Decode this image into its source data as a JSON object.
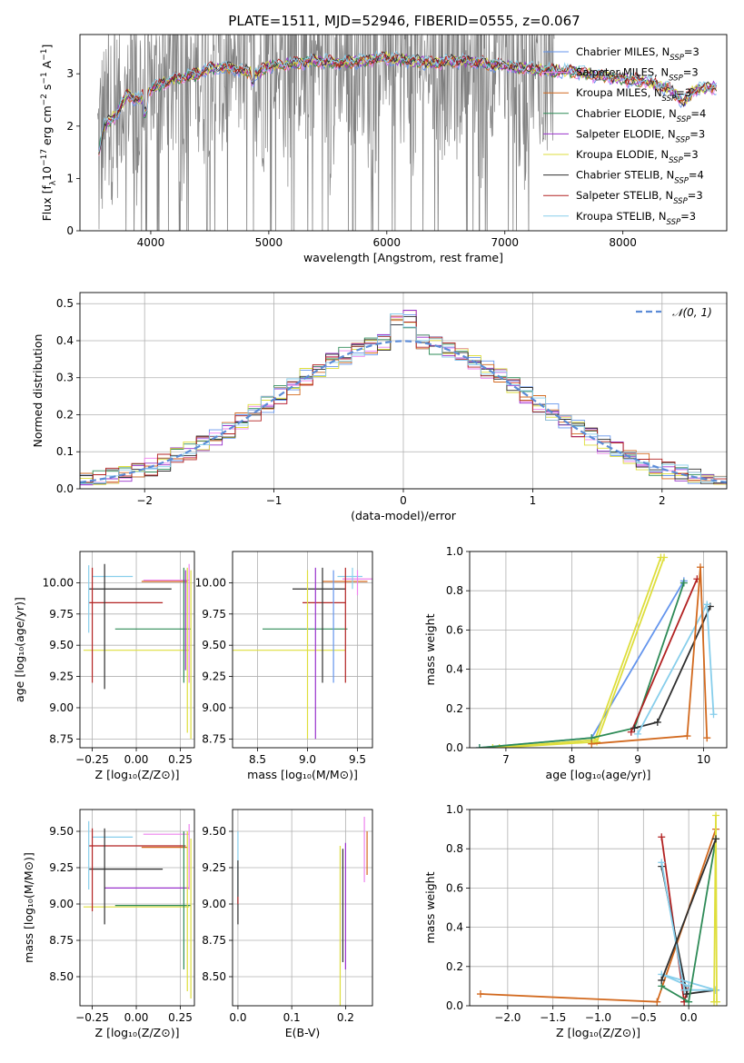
{
  "chart_data": [
    {
      "type": "line",
      "id": "spectrum",
      "title": "PLATE=1511, MJD=52946, FIBERID=0555, z=0.067",
      "xlabel": "wavelength [Angstrom, rest frame]",
      "ylabel": "Flux [f$_\\lambda$10$^{-17}$ erg cm$^{-2}$ s$^{-1}$ A$^{-1}$]",
      "ylabel_parts": [
        "Flux [f",
        "λ",
        "10",
        "−17",
        " erg cm",
        "−2",
        " s",
        "−1",
        " A",
        "−1",
        "]"
      ],
      "xlim": [
        3400,
        8880
      ],
      "ylim": [
        0,
        3.75
      ],
      "xticks": [
        4000,
        5000,
        6000,
        7000,
        8000
      ],
      "yticks": [
        0,
        1,
        2,
        3
      ],
      "grid": false,
      "legend_position": "top-right",
      "observed_color": "#808080",
      "observed_range": [
        3550,
        7420
      ],
      "model_points": [
        [
          3560,
          1.5
        ],
        [
          3600,
          2.0
        ],
        [
          3700,
          2.2
        ],
        [
          3800,
          2.6
        ],
        [
          3900,
          2.5
        ],
        [
          4000,
          2.7
        ],
        [
          4100,
          2.8
        ],
        [
          4200,
          2.9
        ],
        [
          4300,
          2.95
        ],
        [
          4400,
          3.0
        ],
        [
          4500,
          3.1
        ],
        [
          4600,
          3.1
        ],
        [
          4700,
          3.1
        ],
        [
          4800,
          3.05
        ],
        [
          4900,
          3.0
        ],
        [
          5000,
          3.15
        ],
        [
          5200,
          3.2
        ],
        [
          5400,
          3.25
        ],
        [
          5600,
          3.2
        ],
        [
          5800,
          3.25
        ],
        [
          6000,
          3.3
        ],
        [
          6200,
          3.25
        ],
        [
          6400,
          3.2
        ],
        [
          6600,
          3.25
        ],
        [
          6800,
          3.2
        ],
        [
          7000,
          3.15
        ],
        [
          7200,
          3.1
        ],
        [
          7400,
          3.05
        ],
        [
          7600,
          3.05
        ],
        [
          7800,
          2.95
        ],
        [
          8000,
          2.9
        ],
        [
          8200,
          2.85
        ],
        [
          8400,
          2.7
        ],
        [
          8520,
          2.45
        ],
        [
          8600,
          2.7
        ],
        [
          8800,
          2.75
        ]
      ],
      "series": [
        {
          "name": "Chabrier MILES, N",
          "sub": "SSP",
          "suffix": "=3",
          "color": "#6495ed"
        },
        {
          "name": "Salpeter MILES, N",
          "sub": "SSP",
          "suffix": "=3",
          "color": "#ee82ee"
        },
        {
          "name": "Kroupa MILES, N",
          "sub": "SSP",
          "suffix": "=3",
          "color": "#d2691e"
        },
        {
          "name": "Chabrier ELODIE, N",
          "sub": "SSP",
          "suffix": "=4",
          "color": "#2e8b57"
        },
        {
          "name": "Salpeter ELODIE, N",
          "sub": "SSP",
          "suffix": "=3",
          "color": "#9932cc"
        },
        {
          "name": "Kroupa ELODIE, N",
          "sub": "SSP",
          "suffix": "=3",
          "color": "#dede3c"
        },
        {
          "name": "Chabrier STELIB, N",
          "sub": "SSP",
          "suffix": "=4",
          "color": "#2f2f2f"
        },
        {
          "name": "Salpeter STELIB, N",
          "sub": "SSP",
          "suffix": "=3",
          "color": "#b22222"
        },
        {
          "name": "Kroupa STELIB, N",
          "sub": "SSP",
          "suffix": "=3",
          "color": "#87ceeb"
        }
      ]
    },
    {
      "type": "line",
      "id": "residuals",
      "xlabel": "(data-model)/error",
      "ylabel": "Normed distribution",
      "xlim": [
        -2.5,
        2.5
      ],
      "ylim": [
        0,
        0.53
      ],
      "xticks": [
        -2,
        -1,
        0,
        1,
        2
      ],
      "xtick_labels": [
        "−2",
        "−1",
        "0",
        "1",
        "2"
      ],
      "yticks": [
        0.0,
        0.1,
        0.2,
        0.3,
        0.4,
        0.5
      ],
      "ytick_labels": [
        "0.0",
        "0.1",
        "0.2",
        "0.3",
        "0.4",
        "0.5"
      ],
      "grid": true,
      "legend_position": "top-right",
      "legend_label": "𝒩(0, 1)",
      "normal_color": "#5b8bd6"
    },
    {
      "type": "scatter",
      "id": "age-vs-Z",
      "xlabel": "Z [log₁₀(Z/Z⊙)]",
      "ylabel": "age  [log₁₀(age/yr)]",
      "xlim": [
        -0.32,
        0.33
      ],
      "ylim": [
        8.68,
        10.25
      ],
      "xticks": [
        -0.25,
        0.0,
        0.25
      ],
      "xtick_labels": [
        "−0.25",
        "0.00",
        "0.25"
      ],
      "yticks": [
        8.75,
        9.0,
        9.25,
        9.5,
        9.75,
        10.0
      ],
      "ytick_labels": [
        "8.75",
        "9.00",
        "9.25",
        "9.50",
        "9.75",
        "10.00"
      ],
      "grid": true
    },
    {
      "type": "scatter",
      "id": "age-vs-mass",
      "xlabel": "mass [log₁₀(M/M⊙)]",
      "xlim": [
        8.25,
        9.65
      ],
      "ylim": [
        8.68,
        10.25
      ],
      "xticks": [
        8.5,
        9.0,
        9.5
      ],
      "xtick_labels": [
        "8.5",
        "9.0",
        "9.5"
      ],
      "yticks": [
        8.75,
        9.0,
        9.25,
        9.5,
        9.75,
        10.0
      ],
      "ytick_labels": [
        "8.75",
        "9.00",
        "9.25",
        "9.50",
        "9.75",
        "10.00"
      ],
      "grid": true
    },
    {
      "type": "line",
      "id": "weight-vs-age",
      "xlabel": "age  [log₁₀(age/yr)]",
      "ylabel": "mass weight",
      "xlim": [
        6.45,
        10.35
      ],
      "ylim": [
        0,
        1.0
      ],
      "xticks": [
        7,
        8,
        9,
        10
      ],
      "xtick_labels": [
        "7",
        "8",
        "9",
        "10"
      ],
      "yticks": [
        0.0,
        0.2,
        0.4,
        0.6,
        0.8,
        1.0
      ],
      "ytick_labels": [
        "0.0",
        "0.2",
        "0.4",
        "0.6",
        "0.8",
        "1.0"
      ],
      "grid": true
    },
    {
      "type": "scatter",
      "id": "mass-vs-Z",
      "xlabel": "Z [log₁₀(Z/Z⊙)]",
      "ylabel": "mass [log₁₀(M/M⊙)]",
      "xlim": [
        -0.32,
        0.33
      ],
      "ylim": [
        8.3,
        9.65
      ],
      "xticks": [
        -0.25,
        0.0,
        0.25
      ],
      "xtick_labels": [
        "−0.25",
        "0.00",
        "0.25"
      ],
      "yticks": [
        8.5,
        8.75,
        9.0,
        9.25,
        9.5
      ],
      "ytick_labels": [
        "8.50",
        "8.75",
        "9.00",
        "9.25",
        "9.50"
      ],
      "grid": true
    },
    {
      "type": "scatter",
      "id": "mass-vs-ebv",
      "xlabel": "E(B-V)",
      "xlim": [
        -0.01,
        0.25
      ],
      "ylim": [
        8.3,
        9.65
      ],
      "xticks": [
        0.0,
        0.1,
        0.2
      ],
      "xtick_labels": [
        "0.0",
        "0.1",
        "0.2"
      ],
      "yticks": [
        8.5,
        8.75,
        9.0,
        9.25,
        9.5
      ],
      "ytick_labels": [
        "8.50",
        "8.75",
        "9.00",
        "9.25",
        "9.50"
      ],
      "grid": true
    },
    {
      "type": "line",
      "id": "weight-vs-Z",
      "xlabel": "Z [log₁₀(Z/Z⊙)]",
      "ylabel": "mass weight",
      "xlim": [
        -2.42,
        0.42
      ],
      "ylim": [
        0,
        1.0
      ],
      "xticks": [
        -2.0,
        -1.5,
        -1.0,
        -0.5,
        0.0
      ],
      "xtick_labels": [
        "−2.0",
        "−1.5",
        "−1.0",
        "−0.5",
        "0.0"
      ],
      "yticks": [
        0.0,
        0.2,
        0.4,
        0.6,
        0.8,
        1.0
      ],
      "ytick_labels": [
        "0.0",
        "0.2",
        "0.4",
        "0.6",
        "0.8",
        "1.0"
      ],
      "grid": true
    }
  ]
}
